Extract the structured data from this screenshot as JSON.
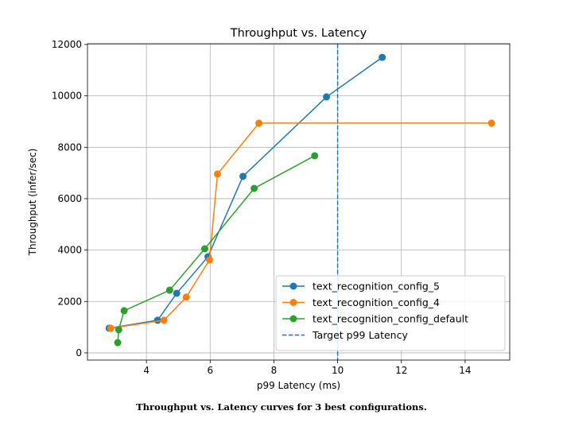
{
  "chart_data": {
    "type": "line",
    "title": "Throughput vs. Latency",
    "xlabel": "p99 Latency (ms)",
    "ylabel": "Throughput (infer/sec)",
    "xlim": [
      2.15,
      15.4
    ],
    "ylim": [
      -280,
      12030
    ],
    "xticks": [
      4,
      6,
      8,
      10,
      12,
      14
    ],
    "yticks": [
      0,
      2000,
      4000,
      6000,
      8000,
      10000,
      12000
    ],
    "grid": true,
    "legend_position": "lower-right",
    "series": [
      {
        "name": "text_recognition_config_5",
        "color": "#1f77b4",
        "x": [
          2.83,
          4.35,
          4.95,
          5.93,
          7.03,
          9.65,
          11.4
        ],
        "y": [
          960,
          1270,
          2320,
          3740,
          6870,
          9960,
          11500
        ]
      },
      {
        "name": "text_recognition_config_4",
        "color": "#ff7f0e",
        "x": [
          2.88,
          4.55,
          5.25,
          5.98,
          6.23,
          7.53,
          14.83
        ],
        "y": [
          960,
          1270,
          2170,
          3620,
          6960,
          8940,
          8940
        ]
      },
      {
        "name": "text_recognition_config_default",
        "color": "#2ca02c",
        "x": [
          3.1,
          3.13,
          3.3,
          4.73,
          5.83,
          7.38,
          9.28
        ],
        "y": [
          400,
          900,
          1640,
          2440,
          4050,
          6400,
          7670
        ]
      }
    ],
    "reference_line": {
      "name": "Target p99 Latency",
      "x": 10,
      "color": "#1f77b4",
      "style": "dashed"
    }
  },
  "caption": "Throughput vs. Latency curves for 3 best configurations."
}
